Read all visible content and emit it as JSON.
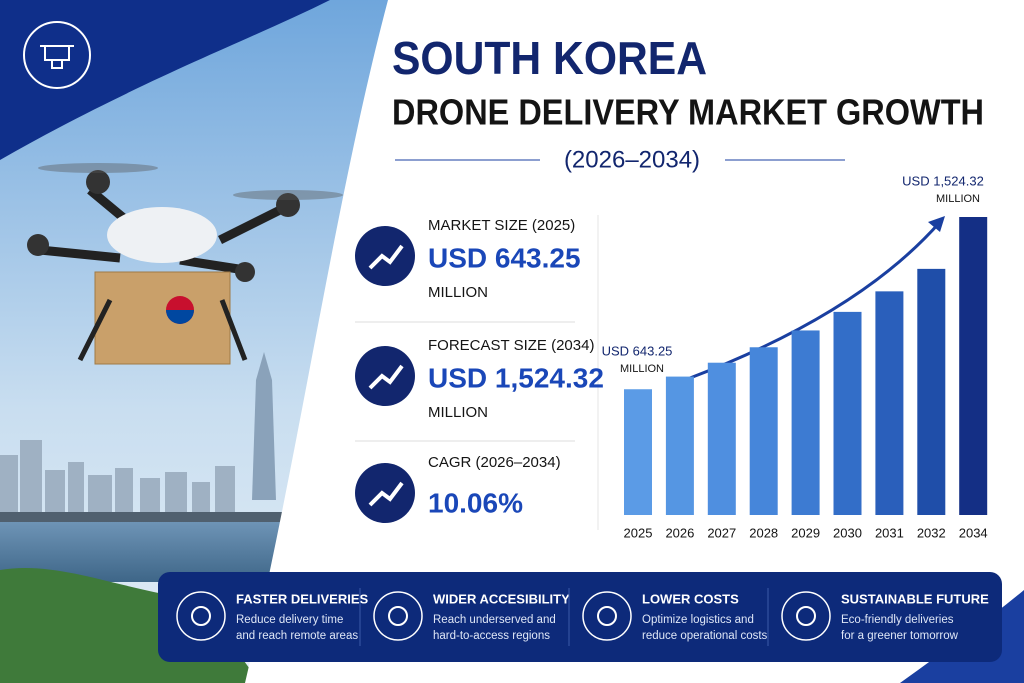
{
  "title_line1": "SOUTH KOREA",
  "title_line2": "DRONE DELIVERY MARKET GROWTH",
  "period": "(2026–2034)",
  "stats": [
    {
      "label": "MARKET SIZE (2025)",
      "value": "USD 643.25",
      "unit": "MILLION"
    },
    {
      "label": "FORECAST SIZE (2034)",
      "value": "USD 1,524.32",
      "unit": "MILLION"
    },
    {
      "label": "CAGR (2026–2034)",
      "value": "10.06%"
    }
  ],
  "chart_data": {
    "type": "bar",
    "categories": [
      "2025",
      "2026",
      "2027",
      "2028",
      "2029",
      "2030",
      "2031",
      "2032",
      "2034"
    ],
    "values": [
      643.25,
      708,
      779,
      858,
      944,
      1039,
      1144,
      1259,
      1524.32
    ],
    "colors": [
      "#5b9be6",
      "#5596e3",
      "#4f8fe0",
      "#4686da",
      "#3d7bd2",
      "#336ec8",
      "#2a5fbb",
      "#1f4ea9",
      "#142f85"
    ],
    "annotations": [
      {
        "text": "USD 643.25",
        "unit": "MILLION"
      },
      {
        "text": "USD 1,524.32",
        "unit": "MILLION"
      }
    ]
  },
  "benefits": [
    {
      "title": "FASTER DELIVERIES",
      "lines": [
        "Reduce delivery time",
        "and reach remote areas"
      ]
    },
    {
      "title": "WIDER ACCESIBILITY",
      "lines": [
        "Reach underserved and",
        "hard-to-access regions"
      ]
    },
    {
      "title": "LOWER COSTS",
      "lines": [
        "Optimize logistics and",
        "reduce operational costs"
      ]
    },
    {
      "title": "SUSTAINABLE FUTURE",
      "lines": [
        "Eco-friendly deliveries",
        "for a greener tomorrow"
      ]
    }
  ]
}
